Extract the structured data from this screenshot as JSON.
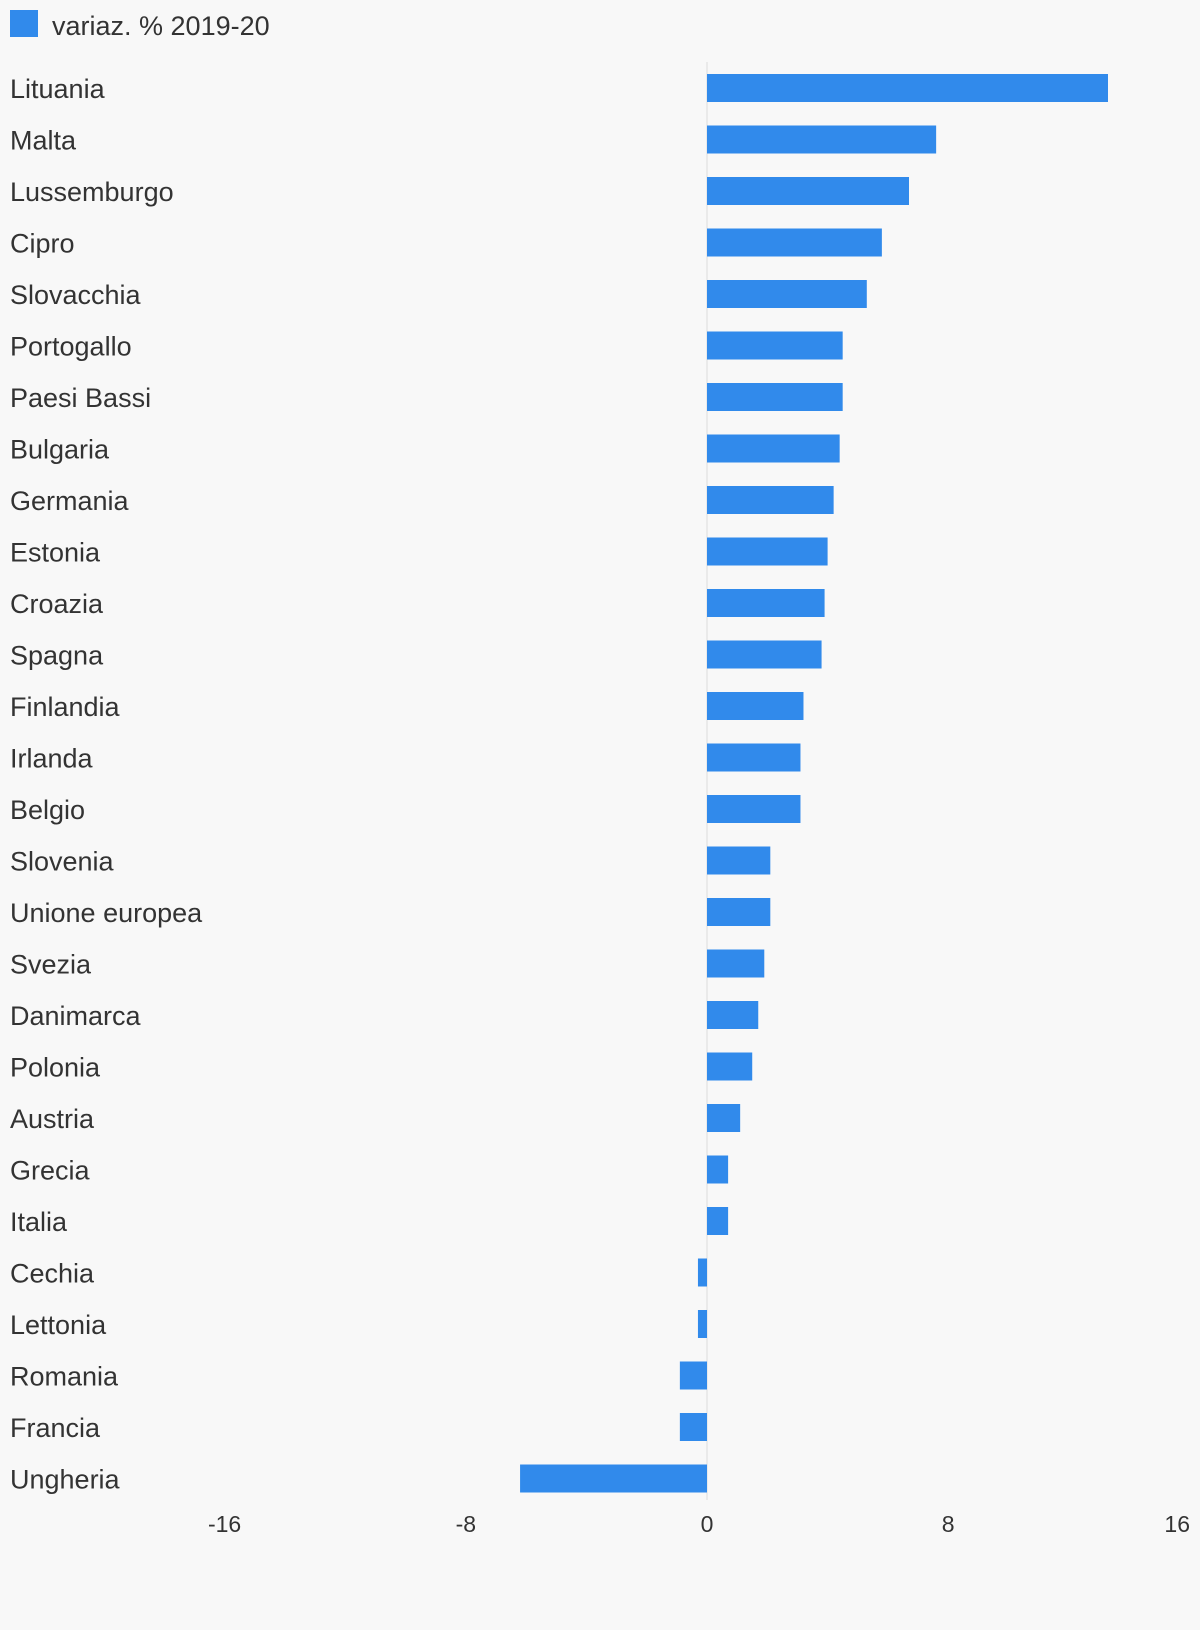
{
  "chart_data": {
    "type": "bar",
    "orientation": "horizontal",
    "legend": {
      "position": "top-left",
      "entries": [
        "variaz. % 2019-20"
      ]
    },
    "series": [
      {
        "name": "variaz. % 2019-20",
        "color": "#318aeb",
        "values": [
          13.3,
          7.6,
          6.7,
          5.8,
          5.3,
          4.5,
          4.5,
          4.4,
          4.2,
          4.0,
          3.9,
          3.8,
          3.2,
          3.1,
          3.1,
          2.1,
          2.1,
          1.9,
          1.7,
          1.5,
          1.1,
          0.7,
          0.7,
          -0.3,
          -0.3,
          -0.9,
          -0.9,
          -6.2
        ]
      }
    ],
    "categories": [
      "Lituania",
      "Malta",
      "Lussemburgo",
      "Cipro",
      "Slovacchia",
      "Portogallo",
      "Paesi Bassi",
      "Bulgaria",
      "Germania",
      "Estonia",
      "Croazia",
      "Spagna",
      "Finlandia",
      "Irlanda",
      "Belgio",
      "Slovenia",
      "Unione europea",
      "Svezia",
      "Danimarca",
      "Polonia",
      "Austria",
      "Grecia",
      "Italia",
      "Cechia",
      "Lettonia",
      "Romania",
      "Francia",
      "Ungheria"
    ],
    "x_ticks": [
      -16,
      -8,
      0,
      8,
      16
    ],
    "x_tick_labels": [
      "-16",
      "-8",
      "0",
      "8",
      "16"
    ],
    "xlim": [
      -16,
      16
    ],
    "grid": false,
    "zero_line_color": "#dddddd"
  }
}
